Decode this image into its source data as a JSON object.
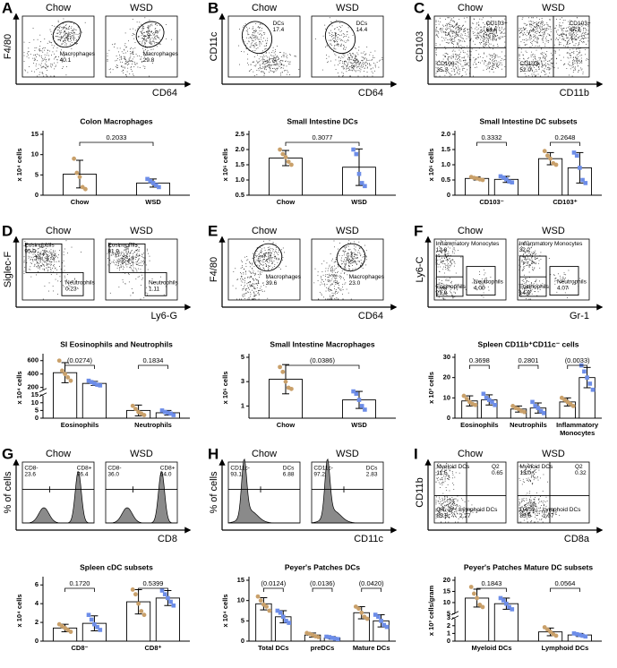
{
  "panels": [
    {
      "letter": "A",
      "groups": [
        "Chow",
        "WSD"
      ],
      "x_label": "CD64",
      "y_label": "F4/80",
      "gates": [
        [
          {
            "name": "Macrophages",
            "value": "40.1"
          }
        ],
        [
          {
            "name": "Macrophages",
            "value": "29.8"
          }
        ]
      ]
    },
    {
      "letter": "B",
      "groups": [
        "Chow",
        "WSD"
      ],
      "x_label": "CD64",
      "y_label": "CD11c",
      "gates": [
        [
          {
            "name": "DCs",
            "value": "17.4"
          }
        ],
        [
          {
            "name": "DCs",
            "value": "14.4"
          }
        ]
      ]
    },
    {
      "letter": "C",
      "groups": [
        "Chow",
        "WSD"
      ],
      "x_label": "CD11b",
      "y_label": "CD103",
      "gates": [
        [
          {
            "name": "CD103+",
            "value": "64.6"
          },
          {
            "name": "CD103-",
            "value": "35.3"
          }
        ],
        [
          {
            "name": "CD103+",
            "value": "47.7"
          },
          {
            "name": "CD103-",
            "value": "52.0"
          }
        ]
      ]
    },
    {
      "letter": "D",
      "groups": [
        "Chow",
        "WSD"
      ],
      "x_label": "Ly6-G",
      "y_label": "Siglec-F",
      "gates": [
        [
          {
            "name": "Eosinophils",
            "value": "95.0"
          },
          {
            "name": "Neutrophils",
            "value": "0.23"
          }
        ],
        [
          {
            "name": "Eosinophils",
            "value": "81.9"
          },
          {
            "name": "Neutrophils",
            "value": "1.11"
          }
        ]
      ]
    },
    {
      "letter": "E",
      "groups": [
        "Chow",
        "WSD"
      ],
      "x_label": "CD64",
      "y_label": "F4/80",
      "gates": [
        [
          {
            "name": "Macrophages",
            "value": "39.6"
          }
        ],
        [
          {
            "name": "Macrophages",
            "value": "23.0"
          }
        ]
      ]
    },
    {
      "letter": "F",
      "groups": [
        "Chow",
        "WSD"
      ],
      "x_label": "Gr-1",
      "y_label": "Ly6-C",
      "gates": [
        [
          {
            "name": "Inflammatory Monocytes",
            "value": "12.8"
          },
          {
            "name": "Eosinophils",
            "value": "21.9"
          },
          {
            "name": "Neutrophils",
            "value": "4.00"
          }
        ],
        [
          {
            "name": "Inflammatory Monocytes",
            "value": "32.2"
          },
          {
            "name": "Eosinophils",
            "value": "14.0"
          },
          {
            "name": "Neutrophils",
            "value": "4.07"
          }
        ]
      ]
    },
    {
      "letter": "G",
      "groups": [
        "Chow",
        "WSD"
      ],
      "x_label": "CD8",
      "y_label": "% of cells",
      "gates": [
        [
          {
            "name": "CD8-",
            "value": "23.6"
          },
          {
            "name": "CD8+",
            "value": "76.4"
          }
        ],
        [
          {
            "name": "CD8-",
            "value": "36.0"
          },
          {
            "name": "CD8+",
            "value": "64.0"
          }
        ]
      ]
    },
    {
      "letter": "H",
      "groups": [
        "Chow",
        "WSD"
      ],
      "x_label": "CD11c",
      "y_label": "% of cells",
      "gates": [
        [
          {
            "name": "CD11c-",
            "value": "93.1"
          },
          {
            "name": "DCs",
            "value": "6.88"
          }
        ],
        [
          {
            "name": "CD11c-",
            "value": "97.2"
          },
          {
            "name": "DCs",
            "value": "2.83"
          }
        ]
      ]
    },
    {
      "letter": "I",
      "groups": [
        "Chow",
        "WSD"
      ],
      "x_label": "CD8a",
      "y_label": "CD11b",
      "gates": [
        [
          {
            "name": "Myeloid DCs",
            "value": "11.5"
          },
          {
            "name": "Q2",
            "value": "0.65"
          },
          {
            "name": "Q4",
            "value": "85.6"
          },
          {
            "name": "Lymphoid DCs",
            "value": "2.27"
          }
        ],
        [
          {
            "name": "Myeloid DCs",
            "value": "13.0"
          },
          {
            "name": "Q2",
            "value": "0.32"
          },
          {
            "name": "Q4",
            "value": "85.6"
          },
          {
            "name": "Lymphoid DCs",
            "value": "1.07"
          }
        ]
      ]
    }
  ],
  "chart_data": [
    {
      "type": "bar",
      "title": "Colon Macrophages",
      "y_label": "x 10⁴ cells",
      "categories": [
        "Chow",
        "WSD"
      ],
      "series": [
        {
          "colors": [
            "#c9a06a",
            "#6d8de8"
          ],
          "values": [
            5.2,
            3.0
          ],
          "errors": [
            3.4,
            1.0
          ],
          "points": [
            [
              9.0,
              5.5,
              4.5,
              2.0,
              1.5
            ],
            [
              4.0,
              3.5,
              3.0,
              2.5,
              2.0
            ]
          ]
        }
      ],
      "ylim": [
        0,
        15
      ],
      "yticks": [
        0,
        5,
        10,
        15
      ],
      "pvalues": [
        "0.2033"
      ]
    },
    {
      "type": "bar",
      "title": "Small Intestine DCs",
      "y_label": "x 10⁶ cells",
      "categories": [
        "Chow",
        "WSD"
      ],
      "series": [
        {
          "colors": [
            "#c9a06a",
            "#6d8de8"
          ],
          "values": [
            1.72,
            1.42
          ],
          "errors": [
            0.25,
            0.6
          ],
          "points": [
            [
              2.0,
              1.85,
              1.75,
              1.6,
              1.5
            ],
            [
              2.0,
              1.85,
              1.2,
              0.9,
              0.8
            ]
          ]
        }
      ],
      "ylim": [
        0.5,
        2.5
      ],
      "yticks": [
        0.5,
        {
          "value": 1,
          "label": "1.0"
        },
        1.5,
        {
          "value": 2,
          "label": "2.0"
        },
        2.5
      ],
      "pvalues": [
        "0.3077"
      ]
    },
    {
      "type": "bar",
      "title": "Small Intestine DC subsets",
      "y_label": "x 10⁶ cells",
      "categories": [
        "CD103⁻",
        "CD103⁺"
      ],
      "series": [
        {
          "color": "#c9a06a",
          "values": [
            0.55,
            1.2
          ],
          "errors": [
            0.05,
            0.2
          ],
          "points": [
            [
              0.6,
              0.57,
              0.55,
              0.52,
              0.5
            ],
            [
              1.45,
              1.3,
              1.2,
              1.05,
              1.0
            ]
          ]
        },
        {
          "color": "#6d8de8",
          "values": [
            0.52,
            0.9
          ],
          "errors": [
            0.1,
            0.5
          ],
          "points": [
            [
              0.62,
              0.58,
              0.52,
              0.45,
              0.42
            ],
            [
              1.4,
              1.3,
              0.9,
              0.5,
              0.4
            ]
          ]
        }
      ],
      "ylim": [
        0,
        2
      ],
      "yticks": [
        0,
        0.5,
        {
          "value": 1,
          "label": "1.0"
        },
        1.5,
        {
          "value": 2,
          "label": "2.0"
        }
      ],
      "pvalues": [
        "0.3332",
        "0.2648"
      ]
    },
    {
      "type": "bar",
      "title": "SI Eosinophils and Neutrophils",
      "y_label": "x 10⁴ cells",
      "categories": [
        "Eosinophils",
        "Neutrophils"
      ],
      "series": [
        {
          "color": "#c9a06a",
          "values": [
            420,
            5
          ],
          "errors": [
            150,
            3.5
          ],
          "points": [
            [
              600,
              450,
              400,
              350,
              300
            ],
            [
              8,
              6,
              4,
              3,
              2
            ]
          ]
        },
        {
          "color": "#6d8de8",
          "values": [
            260,
            3.5
          ],
          "errors": [
            30,
            1.5
          ],
          "points": [
            [
              300,
              280,
              260,
              240,
              230
            ],
            [
              5,
              4,
              3.5,
              3,
              2
            ]
          ]
        }
      ],
      "ylim": [
        0,
        650
      ],
      "ybreak": [
        15,
        150
      ],
      "yticks": [
        0,
        5,
        10,
        15,
        200,
        400,
        600
      ],
      "pvalues": [
        "(0.0274)",
        "0.1834"
      ]
    },
    {
      "type": "bar",
      "title": "Small Intestine Macrophages",
      "y_label": "x 10⁶ cells",
      "categories": [
        "Chow",
        "WSD"
      ],
      "series": [
        {
          "colors": [
            "#c9a06a",
            "#6d8de8"
          ],
          "values": [
            3.2,
            1.5
          ],
          "errors": [
            1.2,
            0.7
          ],
          "points": [
            [
              4.2,
              3.8,
              3.0,
              2.5,
              2.4
            ],
            [
              2.2,
              2.0,
              1.5,
              1.0,
              0.7
            ]
          ]
        }
      ],
      "ylim": [
        0,
        5
      ],
      "yticks": [
        1,
        3,
        5
      ],
      "pvalues": [
        "(0.0386)"
      ]
    },
    {
      "type": "bar",
      "title": "Spleen CD11b⁺CD11c⁻ cells",
      "y_label": "x 10³ cells",
      "categories": [
        "Eosinophils",
        "Neutrophils",
        "Inflammatory Monocytes"
      ],
      "series": [
        {
          "color": "#c9a06a",
          "values": [
            8.5,
            4.5,
            8
          ],
          "errors": [
            2.5,
            1.5,
            2
          ],
          "points": [
            [
              11,
              9.5,
              8,
              7,
              6.5
            ],
            [
              6,
              5,
              4.5,
              3.5,
              3
            ],
            [
              10,
              9,
              8,
              7,
              6
            ]
          ]
        },
        {
          "color": "#6d8de8",
          "values": [
            9,
            5,
            20
          ],
          "errors": [
            2.5,
            2.5,
            5
          ],
          "points": [
            [
              12,
              10,
              9,
              8,
              6.5
            ],
            [
              8,
              6,
              5,
              3.5,
              2.5
            ],
            [
              26,
              23,
              20,
              17,
              14
            ]
          ]
        }
      ],
      "ylim": [
        0,
        30
      ],
      "yticks": [
        0,
        10,
        20,
        30
      ],
      "pvalues": [
        "0.3698",
        "0.2801",
        "(0.0033)"
      ]
    },
    {
      "type": "bar",
      "title": "Spleen cDC subsets",
      "y_label": "x 10⁴ cells",
      "categories": [
        "CD8⁻",
        "CD8⁺"
      ],
      "series": [
        {
          "color": "#c9a06a",
          "values": [
            1.4,
            4.2
          ],
          "errors": [
            0.4,
            1.3
          ],
          "points": [
            [
              1.8,
              1.6,
              1.4,
              1.2,
              1.0
            ],
            [
              5.5,
              5.0,
              4.0,
              3.2,
              2.8
            ]
          ]
        },
        {
          "color": "#6d8de8",
          "values": [
            1.9,
            4.6
          ],
          "errors": [
            0.8,
            0.8
          ],
          "points": [
            [
              2.8,
              2.3,
              1.8,
              1.5,
              1.2
            ],
            [
              5.4,
              5.0,
              4.6,
              4.2,
              3.8
            ]
          ]
        }
      ],
      "ylim": [
        0,
        6.5
      ],
      "yticks": [
        0,
        2,
        4,
        6
      ],
      "pvalues": [
        "0.1720",
        "0.5399"
      ]
    },
    {
      "type": "bar",
      "title": "Peyer's Patches DCs",
      "y_label": "x 10⁴ cells",
      "categories": [
        "Total DCs",
        "preDCs",
        "Mature DCs"
      ],
      "series": [
        {
          "color": "#c9a06a",
          "values": [
            9.2,
            1.5,
            7
          ],
          "errors": [
            1.5,
            0.5,
            1.5
          ],
          "points": [
            [
              11,
              10,
              9,
              8.5,
              7.5
            ],
            [
              2,
              1.8,
              1.5,
              1.2,
              1
            ],
            [
              8.5,
              8,
              7,
              6,
              5.5
            ]
          ]
        },
        {
          "color": "#6d8de8",
          "values": [
            6,
            0.8,
            5
          ],
          "errors": [
            1.5,
            0.3,
            1.5
          ],
          "points": [
            [
              7.5,
              7,
              6,
              5,
              4.5
            ],
            [
              1.1,
              1,
              0.8,
              0.6,
              0.5
            ],
            [
              6.5,
              6,
              5,
              4,
              3.5
            ]
          ]
        }
      ],
      "ylim": [
        0,
        15
      ],
      "yticks": [
        0,
        5,
        10,
        15
      ],
      "pvalues": [
        "(0.0124)",
        "(0.0136)",
        "(0.0420)"
      ]
    },
    {
      "type": "bar",
      "title": "Peyer's Patches Mature DC subsets",
      "y_label": "x 10³ cells/gram",
      "categories": [
        "Myeloid DCs",
        "Lymphoid DCs"
      ],
      "series": [
        {
          "color": "#c9a06a",
          "values": [
            12,
            1.2
          ],
          "errors": [
            4,
            0.5
          ],
          "points": [
            [
              17,
              14,
              12,
              9,
              8
            ],
            [
              1.8,
              1.5,
              1.2,
              0.9,
              0.7
            ]
          ]
        },
        {
          "color": "#6d8de8",
          "values": [
            9.5,
            0.8
          ],
          "errors": [
            2.5,
            0.2
          ],
          "points": [
            [
              12,
              11,
              9.5,
              8,
              7
            ],
            [
              1.0,
              0.9,
              0.8,
              0.7,
              0.6
            ]
          ]
        }
      ],
      "ylim": [
        0,
        20
      ],
      "ybreak": [
        3,
        5
      ],
      "yticks": [
        0,
        1,
        2,
        3,
        5,
        10,
        15,
        20
      ],
      "pvalues": [
        "0.1843",
        "0.0564"
      ]
    }
  ]
}
